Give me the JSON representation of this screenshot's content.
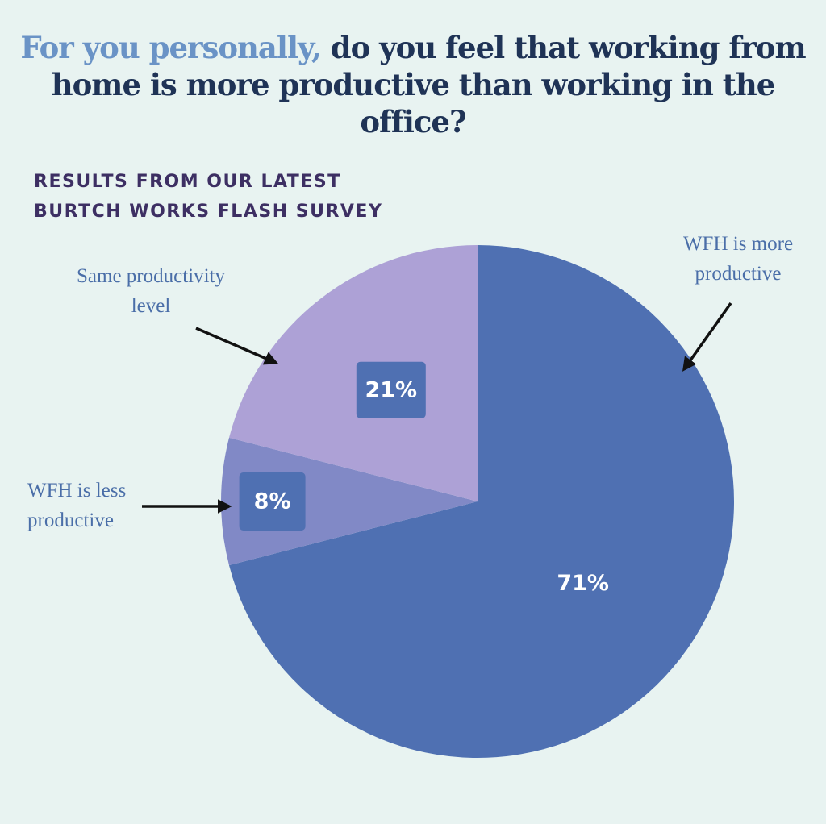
{
  "title": {
    "highlight": "For you personally,",
    "rest": "do you feel that working from home is more productive than working in the office?"
  },
  "subtitle": {
    "line1": "RESULTS FROM OUR LATEST",
    "line2": "BURTCH WORKS FLASH SURVEY"
  },
  "colors": {
    "background": "#e8f3f1",
    "title_accent": "#6a93c6",
    "title_dark": "#1f3356",
    "subtitle": "#3d2f63",
    "slice_more": "#4f70b2",
    "slice_less": "#8189c6",
    "slice_same": "#ada1d6",
    "label_box": "#4f70b2",
    "callout_text": "#4a6ea8"
  },
  "chart_data": {
    "type": "pie",
    "slices": [
      {
        "label": "WFH is more productive",
        "value": 71,
        "value_label": "71%",
        "color": "#4f70b2",
        "callout_lines": [
          "WFH is more",
          "productive"
        ]
      },
      {
        "label": "WFH is less productive",
        "value": 8,
        "value_label": "8%",
        "color": "#8189c6",
        "callout_lines": [
          "WFH is less",
          "productive"
        ]
      },
      {
        "label": "Same productivity level",
        "value": 21,
        "value_label": "21%",
        "color": "#ada1d6",
        "callout_lines": [
          "Same productivity",
          "level"
        ]
      }
    ],
    "start": "12 o'clock",
    "direction": "clockwise",
    "legend": "none"
  }
}
